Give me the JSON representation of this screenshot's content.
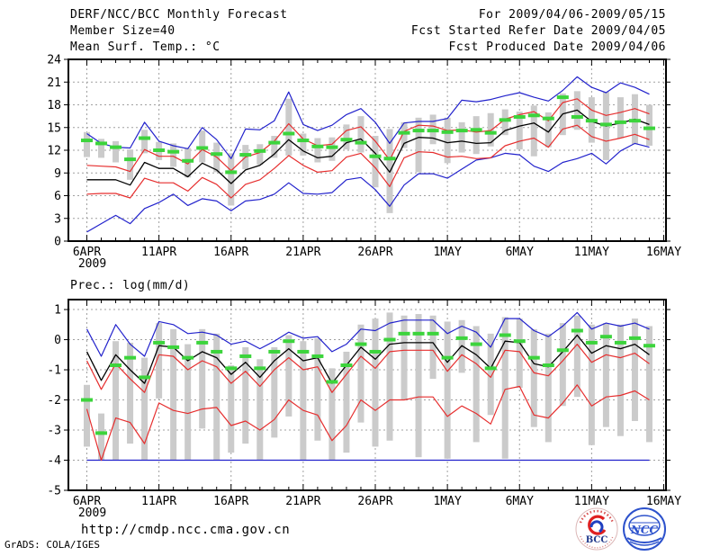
{
  "header": {
    "left": [
      "DERF/NCC/BCC Monthly Forecast",
      "Member Size=40"
    ],
    "right": [
      "For 2009/04/06-2009/05/15",
      "Fcst Started Refer Date 2009/04/05",
      "Fcst Produced Date 2009/04/06"
    ]
  },
  "footer": {
    "url": "http://cmdp.ncc.cma.gov.cn",
    "grads_credit": "GrADS: COLA/IGES",
    "bcc_label": "BCC",
    "ncc_label": "NCC"
  },
  "colors": {
    "ensemble_extreme_line": "#2222cc",
    "quartile_line": "#e62e2e",
    "mean_line": "#000000",
    "obs_dash": "#3cd43c",
    "member_bar": "#cbcbcb",
    "grid": "#a0a0a0",
    "axis": "#000000",
    "bcc_red": "#e02020",
    "bcc_blue": "#223a8c",
    "ncc_blue": "#2d52cc"
  },
  "x_axis": {
    "tick_labels": [
      "6APR",
      "11APR",
      "16APR",
      "21APR",
      "26APR",
      "1MAY",
      "6MAY",
      "11MAY",
      "16MAY"
    ],
    "tick_days": [
      0,
      5,
      10,
      15,
      20,
      25,
      30,
      35,
      40
    ],
    "year_label": "2009",
    "n_days": 40
  },
  "chart_data": [
    {
      "type": "line",
      "title": "Mean Surf. Temp.: °C",
      "ylabel": "",
      "ylim": [
        0,
        24
      ],
      "y_ticks": [
        0,
        3,
        6,
        9,
        12,
        15,
        18,
        21,
        24
      ],
      "grid": true,
      "legend": "none",
      "series": {
        "blue_max": [
          14.2,
          12.9,
          12.4,
          12.3,
          15.7,
          13.2,
          12.6,
          12.2,
          15.0,
          13.4,
          10.9,
          14.8,
          14.7,
          15.9,
          19.7,
          15.4,
          14.6,
          15.3,
          16.7,
          17.5,
          15.7,
          12.9,
          15.6,
          15.8,
          15.8,
          16.2,
          18.6,
          18.4,
          18.7,
          19.2,
          19.6,
          19.0,
          18.5,
          19.9,
          21.7,
          20.3,
          19.6,
          20.9,
          20.3,
          19.4
        ],
        "red_upper": [
          10.0,
          9.9,
          9.8,
          9.2,
          12.1,
          11.2,
          11.2,
          10.2,
          12.1,
          11.1,
          9.3,
          11.1,
          11.7,
          13.2,
          15.5,
          13.5,
          12.6,
          12.8,
          14.6,
          15.1,
          13.2,
          10.7,
          14.5,
          15.3,
          15.2,
          14.6,
          14.7,
          14.4,
          14.6,
          16.1,
          16.7,
          17.1,
          15.9,
          18.3,
          18.8,
          17.3,
          16.6,
          17.0,
          17.5,
          16.8
        ],
        "black_mean": [
          8.1,
          8.1,
          8.1,
          7.4,
          10.4,
          9.6,
          9.6,
          8.5,
          10.3,
          9.4,
          7.6,
          9.4,
          10.0,
          11.5,
          13.4,
          11.9,
          11.0,
          11.2,
          13.0,
          13.5,
          11.6,
          9.1,
          12.9,
          13.7,
          13.6,
          13.0,
          13.2,
          12.9,
          13.0,
          14.6,
          15.2,
          15.6,
          14.4,
          16.8,
          17.3,
          15.8,
          15.2,
          15.6,
          16.1,
          15.4
        ],
        "red_lower": [
          6.2,
          6.3,
          6.3,
          5.7,
          8.3,
          7.7,
          7.7,
          6.6,
          8.4,
          7.5,
          5.7,
          7.5,
          8.1,
          9.6,
          11.3,
          10.0,
          9.1,
          9.3,
          11.1,
          11.6,
          9.7,
          7.2,
          11.0,
          11.8,
          11.7,
          11.1,
          11.2,
          10.9,
          11.0,
          12.6,
          13.2,
          13.6,
          12.4,
          14.8,
          15.3,
          13.8,
          13.2,
          13.6,
          14.1,
          13.4
        ],
        "blue_min": [
          1.2,
          2.3,
          3.4,
          2.3,
          4.3,
          5.1,
          6.2,
          4.7,
          5.6,
          5.3,
          4.0,
          5.3,
          5.5,
          6.2,
          7.7,
          6.3,
          6.2,
          6.4,
          8.1,
          8.4,
          6.8,
          4.6,
          7.4,
          8.9,
          8.9,
          8.3,
          9.5,
          10.7,
          11.0,
          11.6,
          11.4,
          9.9,
          9.2,
          10.4,
          10.9,
          11.6,
          10.2,
          11.9,
          12.9,
          12.4
        ],
        "green_obs_dash": [
          13.3,
          12.9,
          12.4,
          10.8,
          13.6,
          12.0,
          11.8,
          10.6,
          12.3,
          11.5,
          9.1,
          11.4,
          11.9,
          13.0,
          14.2,
          13.3,
          12.5,
          12.4,
          13.4,
          13.0,
          11.2,
          10.9,
          14.3,
          14.6,
          14.6,
          14.4,
          14.6,
          14.7,
          14.3,
          16.0,
          16.4,
          16.6,
          16.2,
          19.0,
          16.4,
          15.9,
          15.4,
          15.7,
          15.9,
          14.9
        ],
        "gray_bar_hi": [
          14.4,
          13.5,
          13.2,
          12.1,
          14.7,
          13.1,
          12.9,
          12.3,
          14.6,
          13.0,
          11.6,
          12.7,
          12.8,
          13.9,
          18.8,
          14.2,
          13.6,
          13.7,
          15.4,
          16.5,
          13.9,
          14.8,
          15.7,
          16.3,
          16.7,
          16.3,
          15.7,
          16.5,
          16.9,
          17.4,
          17.1,
          17.9,
          17.0,
          19.5,
          19.8,
          19.0,
          19.7,
          19.0,
          19.4,
          18.0
        ],
        "gray_bar_lo": [
          11.1,
          11.0,
          10.4,
          8.1,
          11.6,
          10.7,
          9.8,
          8.4,
          10.4,
          9.1,
          4.7,
          9.5,
          10.1,
          11.0,
          11.3,
          11.3,
          10.4,
          10.6,
          12.1,
          11.7,
          7.1,
          3.7,
          12.3,
          9.1,
          12.8,
          10.3,
          11.7,
          11.5,
          12.5,
          14.0,
          12.1,
          11.2,
          12.4,
          14.0,
          14.7,
          13.0,
          10.7,
          13.6,
          12.8,
          12.6
        ]
      }
    },
    {
      "type": "line",
      "title": "Prec.: log(mm/d)",
      "ylabel": "",
      "ylim": [
        -5,
        1.33
      ],
      "y_ticks": [
        1,
        0,
        -1,
        -2,
        -3,
        -4,
        -5
      ],
      "grid": true,
      "legend": "none",
      "series": {
        "blue_max": [
          0.35,
          -0.55,
          0.5,
          -0.15,
          -0.55,
          0.6,
          0.5,
          0.2,
          0.25,
          0.15,
          -0.15,
          -0.05,
          -0.3,
          -0.05,
          0.25,
          0.05,
          0.1,
          -0.4,
          -0.15,
          0.35,
          0.3,
          0.55,
          0.65,
          0.65,
          0.65,
          0.2,
          0.45,
          0.25,
          -0.25,
          0.7,
          0.7,
          0.3,
          0.1,
          0.45,
          0.9,
          0.35,
          0.55,
          0.45,
          0.55,
          0.35
        ],
        "red_upper": [
          -0.7,
          -1.65,
          -0.8,
          -1.3,
          -1.75,
          -0.5,
          -0.55,
          -1.0,
          -0.7,
          -0.9,
          -1.45,
          -1.05,
          -1.55,
          -1.0,
          -0.6,
          -1.0,
          -0.9,
          -1.75,
          -1.15,
          -0.55,
          -0.95,
          -0.4,
          -0.35,
          -0.35,
          -0.35,
          -1.05,
          -0.5,
          -0.8,
          -1.25,
          -0.35,
          -0.4,
          -1.1,
          -1.2,
          -0.7,
          -0.15,
          -0.75,
          -0.5,
          -0.6,
          -0.45,
          -0.8
        ],
        "black_mean": [
          -0.4,
          -1.35,
          -0.5,
          -1.0,
          -1.45,
          -0.2,
          -0.25,
          -0.7,
          -0.4,
          -0.6,
          -1.15,
          -0.75,
          -1.25,
          -0.7,
          -0.3,
          -0.7,
          -0.6,
          -1.45,
          -0.85,
          -0.25,
          -0.65,
          -0.15,
          -0.1,
          -0.1,
          -0.1,
          -0.75,
          -0.2,
          -0.5,
          -0.95,
          -0.05,
          -0.1,
          -0.8,
          -0.9,
          -0.4,
          0.15,
          -0.45,
          -0.2,
          -0.3,
          -0.15,
          -0.5
        ],
        "red_lower": [
          -2.3,
          -4.0,
          -2.6,
          -2.75,
          -3.45,
          -2.1,
          -2.35,
          -2.45,
          -2.3,
          -2.25,
          -2.85,
          -2.7,
          -3.0,
          -2.65,
          -2.0,
          -2.35,
          -2.5,
          -3.35,
          -2.85,
          -2.0,
          -2.35,
          -2.0,
          -2.0,
          -1.9,
          -1.9,
          -2.55,
          -2.2,
          -2.45,
          -2.8,
          -1.65,
          -1.55,
          -2.5,
          -2.6,
          -2.1,
          -1.5,
          -2.2,
          -1.9,
          -1.85,
          -1.7,
          -2.0
        ],
        "blue_min": [
          -4,
          -4,
          -4,
          -4,
          -4,
          -4,
          -4,
          -4,
          -4,
          -4,
          -4,
          -4,
          -4,
          -4,
          -4,
          -4,
          -4,
          -4,
          -4,
          -4,
          -4,
          -4,
          -4,
          -4,
          -4,
          -4,
          -4,
          -4,
          -4,
          -4,
          -4,
          -4,
          -4,
          -4,
          -4,
          -4,
          -4,
          -4,
          -4,
          -4
        ],
        "green_obs_dash": [
          -2.0,
          -3.1,
          -0.85,
          -0.6,
          -1.25,
          -0.1,
          -0.25,
          -0.6,
          -0.1,
          -0.4,
          -0.95,
          -0.55,
          -0.95,
          -0.4,
          -0.05,
          -0.4,
          -0.55,
          -1.4,
          -0.85,
          -0.15,
          -0.4,
          0.0,
          0.2,
          0.2,
          0.2,
          -0.6,
          0.05,
          -0.15,
          -0.95,
          0.15,
          -0.05,
          -0.6,
          -0.85,
          -0.35,
          0.3,
          -0.1,
          0.1,
          -0.1,
          0.05,
          -0.2
        ],
        "gray_bar_hi": [
          -1.5,
          -2.45,
          -0.05,
          -0.1,
          -0.6,
          0.55,
          0.35,
          -0.15,
          0.35,
          0.2,
          -0.85,
          -0.25,
          -0.65,
          -0.25,
          0.15,
          -0.05,
          0.05,
          -0.95,
          -0.4,
          0.5,
          0.7,
          0.9,
          0.8,
          0.85,
          0.8,
          0.6,
          0.65,
          0.45,
          0.2,
          0.75,
          0.7,
          0.35,
          0.2,
          0.55,
          0.8,
          0.5,
          0.55,
          0.5,
          0.7,
          0.45
        ],
        "gray_bar_lo": [
          -3.55,
          -4.0,
          -4.0,
          -3.45,
          -4.0,
          -1.95,
          -4.0,
          -4.0,
          -2.95,
          -4.0,
          -3.75,
          -3.45,
          -4.0,
          -3.25,
          -2.55,
          -4.0,
          -3.35,
          -4.0,
          -3.75,
          -2.75,
          -3.55,
          -3.35,
          -2.0,
          -3.9,
          -1.3,
          -3.95,
          -1.1,
          -3.4,
          -2.5,
          -3.95,
          -1.6,
          -2.9,
          -3.4,
          -2.2,
          -1.9,
          -3.5,
          -2.9,
          -3.2,
          -2.7,
          -3.4
        ]
      }
    }
  ]
}
